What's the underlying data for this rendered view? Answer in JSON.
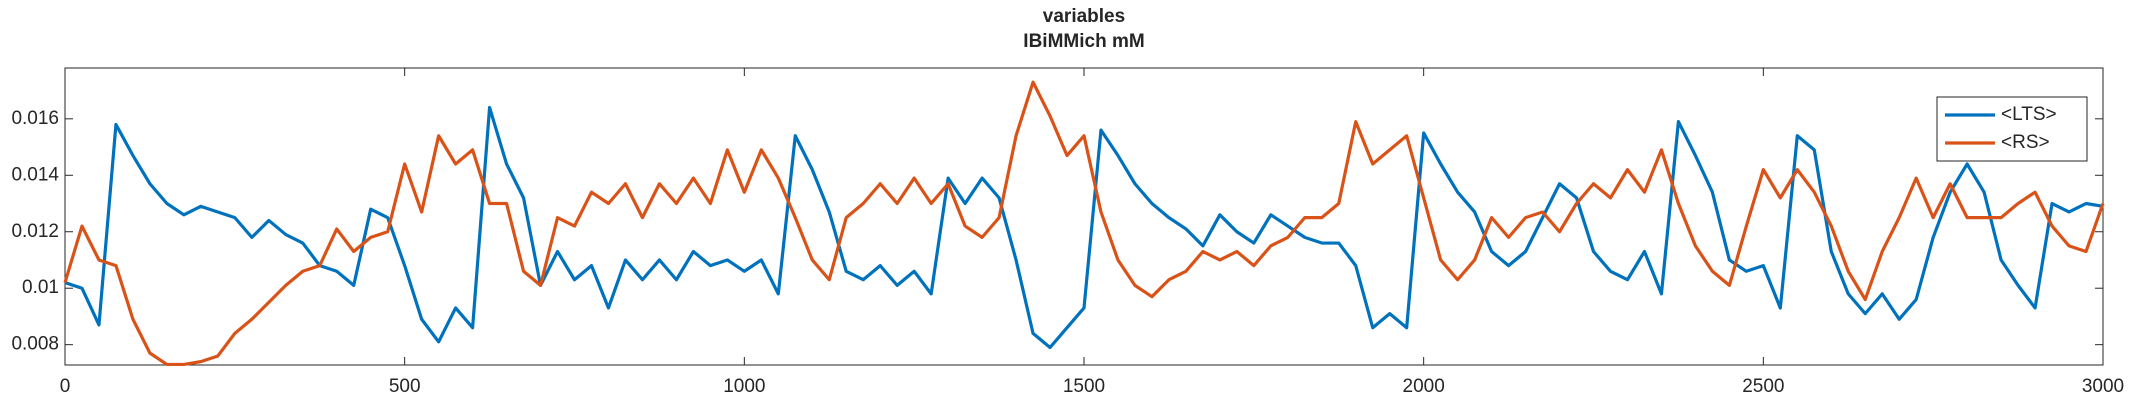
{
  "chart_data": {
    "type": "line",
    "title": "variables",
    "subtitle": "IBiMMich mM",
    "x": [
      0,
      25,
      50,
      75,
      100,
      125,
      150,
      175,
      200,
      225,
      250,
      275,
      300,
      325,
      350,
      375,
      400,
      425,
      450,
      475,
      500,
      525,
      550,
      575,
      600,
      625,
      650,
      675,
      700,
      725,
      750,
      775,
      800,
      825,
      850,
      875,
      900,
      925,
      950,
      975,
      1000,
      1025,
      1050,
      1075,
      1100,
      1125,
      1150,
      1175,
      1200,
      1225,
      1250,
      1275,
      1300,
      1325,
      1350,
      1375,
      1400,
      1425,
      1450,
      1475,
      1500,
      1525,
      1550,
      1575,
      1600,
      1625,
      1650,
      1675,
      1700,
      1725,
      1750,
      1775,
      1800,
      1825,
      1850,
      1875,
      1900,
      1925,
      1950,
      1975,
      2000,
      2025,
      2050,
      2075,
      2100,
      2125,
      2150,
      2175,
      2200,
      2225,
      2250,
      2275,
      2300,
      2325,
      2350,
      2375,
      2400,
      2425,
      2450,
      2475,
      2500,
      2525,
      2550,
      2575,
      2600,
      2625,
      2650,
      2675,
      2700,
      2725,
      2750,
      2775,
      2800,
      2825,
      2850,
      2875,
      2900,
      2925,
      2950,
      2975,
      3000
    ],
    "series": [
      {
        "name": "<LTS>",
        "color": "#0072bd",
        "values": [
          0.0102,
          0.01,
          0.0087,
          0.0158,
          0.0147,
          0.0137,
          0.013,
          0.0126,
          0.0129,
          0.0127,
          0.0125,
          0.0118,
          0.0124,
          0.0119,
          0.0116,
          0.0108,
          0.0106,
          0.0101,
          0.0128,
          0.0125,
          0.0108,
          0.0089,
          0.0081,
          0.0093,
          0.0086,
          0.0164,
          0.0144,
          0.0132,
          0.0101,
          0.0113,
          0.0103,
          0.0108,
          0.0093,
          0.011,
          0.0103,
          0.011,
          0.0103,
          0.0113,
          0.0108,
          0.011,
          0.0106,
          0.011,
          0.0098,
          0.0154,
          0.0142,
          0.0127,
          0.0106,
          0.0103,
          0.0108,
          0.0101,
          0.0106,
          0.0098,
          0.0139,
          0.013,
          0.0139,
          0.0132,
          0.011,
          0.0084,
          0.0079,
          0.0086,
          0.0093,
          0.0156,
          0.0147,
          0.0137,
          0.013,
          0.0125,
          0.0121,
          0.0115,
          0.0126,
          0.012,
          0.0116,
          0.0126,
          0.0122,
          0.0118,
          0.0116,
          0.0116,
          0.0108,
          0.0086,
          0.0091,
          0.0086,
          0.0155,
          0.0144,
          0.0134,
          0.0127,
          0.0113,
          0.0108,
          0.0113,
          0.0125,
          0.0137,
          0.0132,
          0.0113,
          0.0106,
          0.0103,
          0.0113,
          0.0098,
          0.0159,
          0.0147,
          0.0134,
          0.011,
          0.0106,
          0.0108,
          0.0093,
          0.0154,
          0.0149,
          0.0113,
          0.0098,
          0.0091,
          0.0098,
          0.0089,
          0.0096,
          0.0118,
          0.0134,
          0.0144,
          0.0134,
          0.011,
          0.0101,
          0.0093,
          0.013,
          0.0127,
          0.013,
          0.0129
        ]
      },
      {
        "name": "<RS>",
        "color": "#d95319",
        "values": [
          0.0102,
          0.0122,
          0.011,
          0.0108,
          0.0089,
          0.0077,
          0.0073,
          0.0073,
          0.0074,
          0.0076,
          0.0084,
          0.0089,
          0.0095,
          0.0101,
          0.0106,
          0.0108,
          0.0121,
          0.0113,
          0.0118,
          0.012,
          0.0144,
          0.0127,
          0.0154,
          0.0144,
          0.0149,
          0.013,
          0.013,
          0.0106,
          0.0101,
          0.0125,
          0.0122,
          0.0134,
          0.013,
          0.0137,
          0.0125,
          0.0137,
          0.013,
          0.0139,
          0.013,
          0.0149,
          0.0134,
          0.0149,
          0.0139,
          0.0125,
          0.011,
          0.0103,
          0.0125,
          0.013,
          0.0137,
          0.013,
          0.0139,
          0.013,
          0.0137,
          0.0122,
          0.0118,
          0.0125,
          0.0154,
          0.0173,
          0.0161,
          0.0147,
          0.0154,
          0.0127,
          0.011,
          0.0101,
          0.0097,
          0.0103,
          0.0106,
          0.0113,
          0.011,
          0.0113,
          0.0108,
          0.0115,
          0.0118,
          0.0125,
          0.0125,
          0.013,
          0.0159,
          0.0144,
          0.0149,
          0.0154,
          0.0132,
          0.011,
          0.0103,
          0.011,
          0.0125,
          0.0118,
          0.0125,
          0.0127,
          0.012,
          0.013,
          0.0137,
          0.0132,
          0.0142,
          0.0134,
          0.0149,
          0.013,
          0.0115,
          0.0106,
          0.0101,
          0.0122,
          0.0142,
          0.0132,
          0.0142,
          0.0134,
          0.0122,
          0.0106,
          0.0096,
          0.0113,
          0.0125,
          0.0139,
          0.0125,
          0.0137,
          0.0125,
          0.0125,
          0.0125,
          0.013,
          0.0134,
          0.0122,
          0.0115,
          0.0113,
          0.013
        ]
      }
    ],
    "xlim": [
      0,
      3000
    ],
    "ylim": [
      0.00728,
      0.0178
    ],
    "xticks": [
      0,
      500,
      1000,
      1500,
      2000,
      2500,
      3000
    ],
    "yticks": [
      0.008,
      0.01,
      0.012,
      0.014,
      0.016
    ],
    "legend": "upper right",
    "grid": false
  }
}
